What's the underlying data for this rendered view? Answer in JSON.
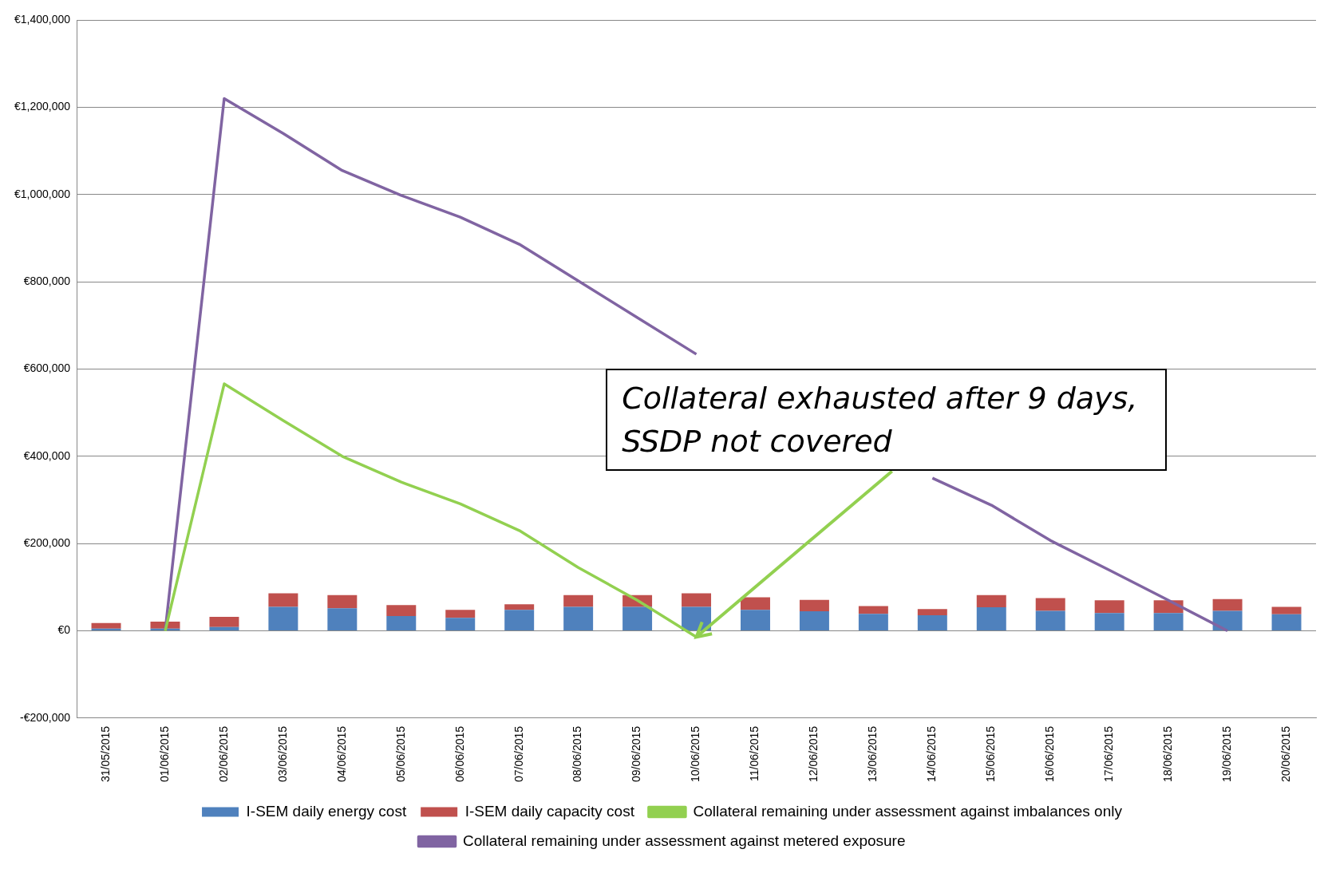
{
  "chart_data": {
    "type": "bar",
    "stacked": true,
    "categories": [
      "31/05/2015",
      "01/06/2015",
      "02/06/2015",
      "03/06/2015",
      "04/06/2015",
      "05/06/2015",
      "06/06/2015",
      "07/06/2015",
      "08/06/2015",
      "09/06/2015",
      "10/06/2015",
      "11/06/2015",
      "12/06/2015",
      "13/06/2015",
      "14/06/2015",
      "15/06/2015",
      "16/06/2015",
      "17/06/2015",
      "18/06/2015",
      "19/06/2015",
      "20/06/2015"
    ],
    "series": [
      {
        "name": "I-SEM daily energy cost",
        "color": "#4f81bd",
        "values": [
          5000,
          5000,
          9000,
          55000,
          52000,
          34000,
          30000,
          48000,
          55000,
          55000,
          55000,
          48000,
          45000,
          39000,
          36000,
          54000,
          46000,
          41000,
          41000,
          46000,
          38000
        ]
      },
      {
        "name": "I-SEM daily capacity cost",
        "color": "#c0504d",
        "values": [
          13000,
          16000,
          23000,
          31000,
          30000,
          25000,
          18000,
          13000,
          27000,
          27000,
          31000,
          29000,
          26000,
          18000,
          14000,
          28000,
          29000,
          29000,
          29000,
          27000,
          17000
        ]
      },
      {
        "name": "Collateral remaining under assessment against imbalances only",
        "type": "line",
        "color": "#92d050",
        "values": [
          null,
          0,
          566000,
          482000,
          400000,
          341000,
          291000,
          230000,
          145000,
          70000,
          -14000,
          null,
          null,
          null,
          null,
          null,
          null,
          null,
          null,
          null,
          null
        ]
      },
      {
        "name": "Collateral remaining under assessment against metered exposure",
        "type": "line",
        "color": "#8064a2",
        "values": [
          null,
          0,
          1220000,
          1140000,
          1055000,
          998000,
          948000,
          886000,
          802000,
          718000,
          634000,
          null,
          null,
          null,
          350000,
          288000,
          207000,
          139000,
          70000,
          0,
          null
        ]
      }
    ],
    "ylim": [
      -200000,
      1400000
    ],
    "yticks": [
      {
        "value": -200000,
        "label": "-€200,000"
      },
      {
        "value": 0,
        "label": "€0"
      },
      {
        "value": 200000,
        "label": "€200,000"
      },
      {
        "value": 400000,
        "label": "€400,000"
      },
      {
        "value": 600000,
        "label": "€600,000"
      },
      {
        "value": 800000,
        "label": "€800,000"
      },
      {
        "value": 1000000,
        "label": "€1,000,000"
      },
      {
        "value": 1200000,
        "label": "€1,200,000"
      },
      {
        "value": 1400000,
        "label": "€1,400,000"
      }
    ],
    "grid": "y",
    "legend": "bottom",
    "marker": "none",
    "line_style": "solid",
    "annotations": [
      {
        "text": "Collateral exhausted after 9 days, SSDP not covered",
        "x": "10/06/2015",
        "y": -14000
      }
    ]
  }
}
